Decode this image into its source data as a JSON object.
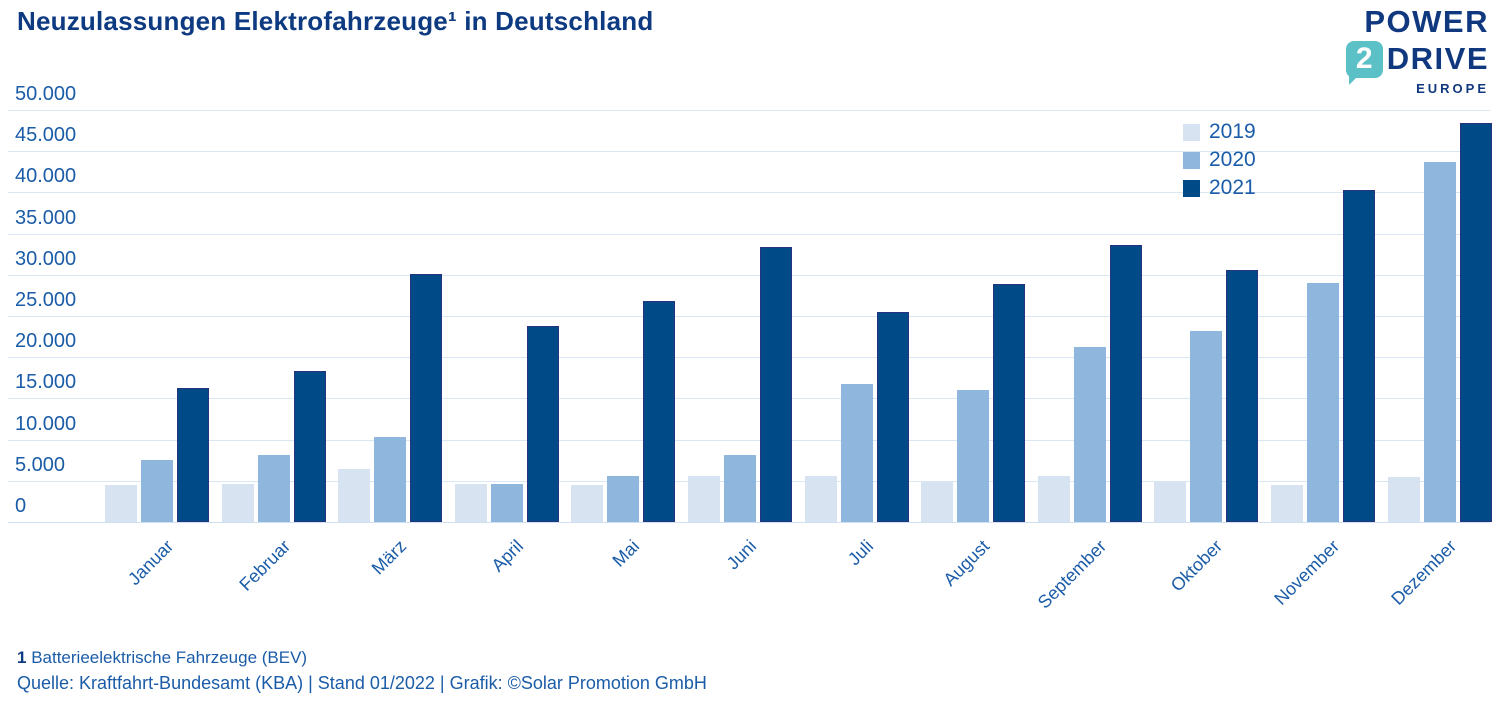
{
  "title": "Neuzulassungen Elektrofahrzeuge¹ in Deutschland",
  "logo": {
    "line1": "POWER",
    "badge": "2",
    "line2": "DRIVE",
    "line3": "EUROPE",
    "badge_color": "#5bc1c7",
    "text_color": "#10387f"
  },
  "chart_data": {
    "type": "bar",
    "title": "Neuzulassungen Elektrofahrzeuge (BEV) in Deutschland",
    "categories": [
      "Januar",
      "Februar",
      "März",
      "April",
      "Mai",
      "Juni",
      "Juli",
      "August",
      "September",
      "Oktober",
      "November",
      "Dezember"
    ],
    "series": [
      {
        "name": "2019",
        "color": "#d7e3f1",
        "values": [
          4500,
          4600,
          6400,
          4600,
          4500,
          5600,
          5600,
          4900,
          5600,
          4800,
          4500,
          5500
        ]
      },
      {
        "name": "2020",
        "color": "#8fb6dc",
        "values": [
          7492,
          8154,
          10329,
          4635,
          5578,
          8119,
          16798,
          16076,
          21188,
          23158,
          28965,
          43671
        ]
      },
      {
        "name": "2021",
        "color": "#004a87",
        "values": [
          16315,
          18278,
          30101,
          23816,
          26786,
          33420,
          25464,
          28860,
          33655,
          30560,
          40270,
          48436
        ]
      }
    ],
    "ylim": [
      0,
      50000
    ],
    "ytick_step": 5000,
    "ytick_labels": [
      "0",
      "5.000",
      "10.000",
      "15.000",
      "20.000",
      "25.000",
      "30.000",
      "35.000",
      "40.000",
      "45.000",
      "50.000"
    ],
    "xlabel": "",
    "ylabel": "",
    "grid": true,
    "legend_position": "top-right-inside",
    "legend_entries": [
      "2019",
      "2020",
      "2021"
    ]
  },
  "footnote": {
    "marker": "1",
    "definition": " Batterieelektrische Fahrzeuge (BEV)",
    "source": "Quelle: Kraftfahrt-Bundesamt (KBA) | Stand 01/2022 | Grafik: ©Solar Promotion GmbH"
  },
  "colors": {
    "title": "#0d3a80",
    "axis_text": "#1b5ca8",
    "gridline": "#d9e6f4",
    "bar_2019": "#d7e3f1",
    "bar_2020": "#8fb6dc",
    "bar_2021": "#004a87",
    "bar_2021_stroke": "#283380",
    "logo_teal": "#5bc1c7",
    "logo_navy": "#10387f",
    "background": "#ffffff"
  }
}
